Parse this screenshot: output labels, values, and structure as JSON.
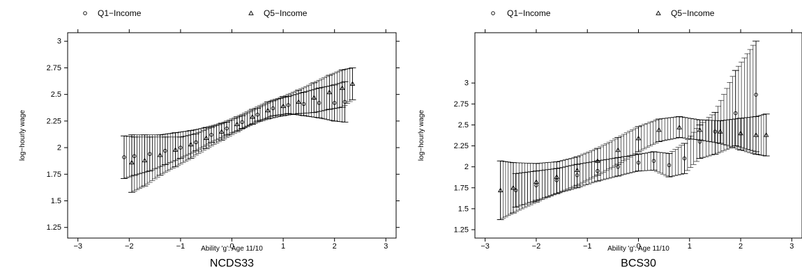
{
  "chart_data": [
    {
      "type": "scatter",
      "title": "NCDS33",
      "xlabel": "Ability 'g': Age 11/10",
      "ylabel": "log−hourly wage",
      "xlim": [
        -3.2,
        3.2
      ],
      "ylim": [
        1.15,
        3.08
      ],
      "xticks": [
        -3,
        -2,
        -1,
        0,
        1,
        2,
        3
      ],
      "yticks": [
        1.25,
        1.5,
        1.75,
        2,
        2.25,
        2.5,
        2.75,
        3
      ],
      "ytick_labels": [
        "1.25",
        "1.5",
        "1.75",
        "2",
        "2.25",
        "2.5",
        "2.75",
        "3"
      ],
      "legend_position": "top",
      "series": [
        {
          "name": "Q1−Income",
          "marker": "circle",
          "points": [
            {
              "x": -2.1,
              "y": 1.91,
              "lo": 1.71,
              "hi": 2.11
            },
            {
              "x": -1.9,
              "y": 1.92,
              "lo": 1.74,
              "hi": 2.1
            },
            {
              "x": -1.6,
              "y": 1.94,
              "lo": 1.78,
              "hi": 2.1
            },
            {
              "x": -1.3,
              "y": 1.97,
              "lo": 1.84,
              "hi": 2.1
            },
            {
              "x": -1.0,
              "y": 2.0,
              "lo": 1.9,
              "hi": 2.1
            },
            {
              "x": -0.7,
              "y": 2.05,
              "lo": 1.97,
              "hi": 2.13
            },
            {
              "x": -0.4,
              "y": 2.12,
              "lo": 2.05,
              "hi": 2.19
            },
            {
              "x": -0.1,
              "y": 2.18,
              "lo": 2.12,
              "hi": 2.24
            },
            {
              "x": 0.2,
              "y": 2.24,
              "lo": 2.18,
              "hi": 2.3
            },
            {
              "x": 0.5,
              "y": 2.31,
              "lo": 2.25,
              "hi": 2.37
            },
            {
              "x": 0.8,
              "y": 2.37,
              "lo": 2.3,
              "hi": 2.44
            },
            {
              "x": 1.1,
              "y": 2.4,
              "lo": 2.32,
              "hi": 2.48
            },
            {
              "x": 1.4,
              "y": 2.41,
              "lo": 2.3,
              "hi": 2.52
            },
            {
              "x": 1.7,
              "y": 2.42,
              "lo": 2.28,
              "hi": 2.56
            },
            {
              "x": 2.0,
              "y": 2.42,
              "lo": 2.25,
              "hi": 2.59
            },
            {
              "x": 2.2,
              "y": 2.43,
              "lo": 2.24,
              "hi": 2.62
            }
          ]
        },
        {
          "name": "Q5−Income",
          "marker": "triangle",
          "points": [
            {
              "x": -1.95,
              "y": 1.86,
              "lo": 1.58,
              "hi": 2.12
            },
            {
              "x": -1.7,
              "y": 1.88,
              "lo": 1.64,
              "hi": 2.12
            },
            {
              "x": -1.4,
              "y": 1.93,
              "lo": 1.74,
              "hi": 2.12
            },
            {
              "x": -1.1,
              "y": 1.98,
              "lo": 1.82,
              "hi": 2.14
            },
            {
              "x": -0.8,
              "y": 2.03,
              "lo": 1.9,
              "hi": 2.16
            },
            {
              "x": -0.5,
              "y": 2.09,
              "lo": 1.99,
              "hi": 2.19
            },
            {
              "x": -0.2,
              "y": 2.15,
              "lo": 2.07,
              "hi": 2.23
            },
            {
              "x": 0.1,
              "y": 2.22,
              "lo": 2.15,
              "hi": 2.29
            },
            {
              "x": 0.4,
              "y": 2.29,
              "lo": 2.22,
              "hi": 2.36
            },
            {
              "x": 0.7,
              "y": 2.35,
              "lo": 2.27,
              "hi": 2.43
            },
            {
              "x": 1.0,
              "y": 2.39,
              "lo": 2.3,
              "hi": 2.48
            },
            {
              "x": 1.3,
              "y": 2.43,
              "lo": 2.32,
              "hi": 2.54
            },
            {
              "x": 1.6,
              "y": 2.47,
              "lo": 2.33,
              "hi": 2.61
            },
            {
              "x": 1.9,
              "y": 2.52,
              "lo": 2.36,
              "hi": 2.68
            },
            {
              "x": 2.15,
              "y": 2.56,
              "lo": 2.38,
              "hi": 2.73
            },
            {
              "x": 2.35,
              "y": 2.6,
              "lo": 2.45,
              "hi": 2.75
            }
          ]
        }
      ]
    },
    {
      "type": "scatter",
      "title": "BCS30",
      "xlabel": "Ability 'g': Age 11/10",
      "ylabel": "log−hourly wage",
      "xlim": [
        -3.2,
        3.2
      ],
      "ylim": [
        1.15,
        3.6
      ],
      "xticks": [
        -3,
        -2,
        -1,
        0,
        1,
        2,
        3
      ],
      "yticks": [
        1.25,
        1.5,
        1.75,
        2,
        2.25,
        2.5,
        2.75,
        3
      ],
      "ytick_labels": [
        "1.25",
        "1.5",
        "1.75",
        "2",
        "2.25",
        "2.5",
        "2.75",
        "3"
      ],
      "legend_position": "top",
      "series": [
        {
          "name": "Q1−Income",
          "marker": "circle",
          "points": [
            {
              "x": -2.4,
              "y": 1.72,
              "lo": 1.52,
              "hi": 1.92
            },
            {
              "x": -2.0,
              "y": 1.78,
              "lo": 1.6,
              "hi": 1.95
            },
            {
              "x": -1.6,
              "y": 1.84,
              "lo": 1.68,
              "hi": 1.98
            },
            {
              "x": -1.2,
              "y": 1.9,
              "lo": 1.75,
              "hi": 2.03
            },
            {
              "x": -0.8,
              "y": 1.95,
              "lo": 1.83,
              "hi": 2.07
            },
            {
              "x": -0.4,
              "y": 2.0,
              "lo": 1.89,
              "hi": 2.11
            },
            {
              "x": 0.0,
              "y": 2.05,
              "lo": 1.95,
              "hi": 2.15
            },
            {
              "x": 0.3,
              "y": 2.07,
              "lo": 1.96,
              "hi": 2.18
            },
            {
              "x": 0.6,
              "y": 2.02,
              "lo": 1.88,
              "hi": 2.16
            },
            {
              "x": 0.9,
              "y": 2.1,
              "lo": 1.92,
              "hi": 2.28
            },
            {
              "x": 1.2,
              "y": 2.3,
              "lo": 2.1,
              "hi": 2.5
            },
            {
              "x": 1.5,
              "y": 2.42,
              "lo": 2.15,
              "hi": 2.65
            },
            {
              "x": 1.9,
              "y": 2.64,
              "lo": 2.25,
              "hi": 3.15
            },
            {
              "x": 2.3,
              "y": 2.86,
              "lo": 2.18,
              "hi": 3.5
            }
          ]
        },
        {
          "name": "Q5−Income",
          "marker": "triangle",
          "points": [
            {
              "x": -2.7,
              "y": 1.72,
              "lo": 1.37,
              "hi": 2.07
            },
            {
              "x": -2.45,
              "y": 1.75,
              "lo": 1.45,
              "hi": 2.05
            },
            {
              "x": -2.0,
              "y": 1.82,
              "lo": 1.58,
              "hi": 2.04
            },
            {
              "x": -1.6,
              "y": 1.88,
              "lo": 1.68,
              "hi": 2.06
            },
            {
              "x": -1.2,
              "y": 1.96,
              "lo": 1.78,
              "hi": 2.12
            },
            {
              "x": -0.8,
              "y": 2.07,
              "lo": 1.9,
              "hi": 2.22
            },
            {
              "x": -0.4,
              "y": 2.2,
              "lo": 2.03,
              "hi": 2.35
            },
            {
              "x": 0.0,
              "y": 2.34,
              "lo": 2.18,
              "hi": 2.48
            },
            {
              "x": 0.4,
              "y": 2.44,
              "lo": 2.3,
              "hi": 2.57
            },
            {
              "x": 0.8,
              "y": 2.47,
              "lo": 2.35,
              "hi": 2.6
            },
            {
              "x": 1.2,
              "y": 2.44,
              "lo": 2.32,
              "hi": 2.56
            },
            {
              "x": 1.6,
              "y": 2.42,
              "lo": 2.28,
              "hi": 2.55
            },
            {
              "x": 2.0,
              "y": 2.4,
              "lo": 2.2,
              "hi": 2.58
            },
            {
              "x": 2.3,
              "y": 2.38,
              "lo": 2.15,
              "hi": 2.6
            },
            {
              "x": 2.5,
              "y": 2.38,
              "lo": 2.13,
              "hi": 2.63
            }
          ]
        }
      ]
    }
  ]
}
